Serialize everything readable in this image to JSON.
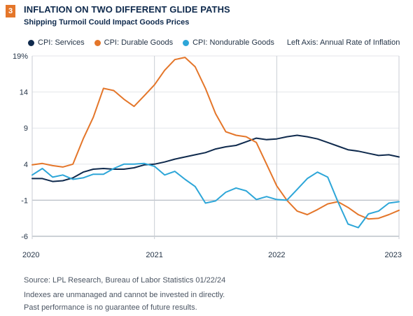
{
  "header": {
    "badge": "3",
    "title": "INFLATION ON TWO DIFFERENT GLIDE PATHS",
    "subtitle": "Shipping Turmoil Could Impact Goods Prices"
  },
  "legend": {
    "note": "Left Axis: Annual Rate of Inflation"
  },
  "footer": {
    "source": "Source: LPL Research, Bureau of Labor Statistics 01/22/24",
    "disclaimer1": "Indexes are unmanaged and cannot be invested in directly.",
    "disclaimer2": "Past performance is no guarantee of future results."
  },
  "chart_data": {
    "type": "line",
    "ylim": [
      -6,
      19
    ],
    "yticks": [
      19,
      14,
      9,
      4,
      -1,
      -6
    ],
    "ytick_labels": [
      "19%",
      "14",
      "9",
      "4",
      "-1",
      "-6"
    ],
    "xlim": [
      2020,
      2023
    ],
    "xticks": [
      2020,
      2021,
      2022,
      2023
    ],
    "xtick_labels": [
      "2020",
      "2021",
      "2022",
      "2023"
    ],
    "reference_line": -1,
    "grid": "horizontal",
    "legend_position": "top",
    "series": [
      {
        "name": "CPI: Services",
        "color": "#0f2a4d",
        "x": [
          2020.0,
          2020.083,
          2020.167,
          2020.25,
          2020.333,
          2020.417,
          2020.5,
          2020.583,
          2020.667,
          2020.75,
          2020.833,
          2020.917,
          2021.0,
          2021.083,
          2021.167,
          2021.25,
          2021.333,
          2021.417,
          2021.5,
          2021.583,
          2021.667,
          2021.75,
          2021.833,
          2021.917,
          2022.0,
          2022.083,
          2022.167,
          2022.25,
          2022.333,
          2022.417,
          2022.5,
          2022.583,
          2022.667,
          2022.75,
          2022.833,
          2022.917,
          2023.0
        ],
        "values": [
          2.0,
          2.0,
          1.6,
          1.7,
          2.1,
          2.9,
          3.3,
          3.4,
          3.3,
          3.3,
          3.5,
          3.9,
          4.0,
          4.3,
          4.7,
          5.0,
          5.3,
          5.6,
          6.1,
          6.4,
          6.6,
          7.1,
          7.6,
          7.4,
          7.5,
          7.8,
          8.0,
          7.8,
          7.5,
          7.0,
          6.5,
          6.0,
          5.8,
          5.5,
          5.2,
          5.3,
          5.0
        ]
      },
      {
        "name": "CPI: Durable Goods",
        "color": "#e4762a",
        "x": [
          2020.0,
          2020.083,
          2020.167,
          2020.25,
          2020.333,
          2020.417,
          2020.5,
          2020.583,
          2020.667,
          2020.75,
          2020.833,
          2020.917,
          2021.0,
          2021.083,
          2021.167,
          2021.25,
          2021.333,
          2021.417,
          2021.5,
          2021.583,
          2021.667,
          2021.75,
          2021.833,
          2021.917,
          2022.0,
          2022.083,
          2022.167,
          2022.25,
          2022.333,
          2022.417,
          2022.5,
          2022.583,
          2022.667,
          2022.75,
          2022.833,
          2022.917,
          2023.0
        ],
        "values": [
          3.9,
          4.1,
          3.8,
          3.6,
          4.0,
          7.5,
          10.5,
          14.5,
          14.2,
          13.0,
          12.0,
          13.5,
          15.0,
          17.0,
          18.5,
          18.8,
          17.5,
          14.5,
          11.0,
          8.5,
          8.0,
          7.8,
          7.0,
          4.0,
          1.0,
          -1.0,
          -2.5,
          -3.0,
          -2.3,
          -1.5,
          -1.2,
          -2.0,
          -3.0,
          -3.6,
          -3.5,
          -3.0,
          -2.4
        ]
      },
      {
        "name": "CPI: Nondurable Goods",
        "color": "#2da6d8",
        "x": [
          2020.0,
          2020.083,
          2020.167,
          2020.25,
          2020.333,
          2020.417,
          2020.5,
          2020.583,
          2020.667,
          2020.75,
          2020.833,
          2020.917,
          2021.0,
          2021.083,
          2021.167,
          2021.25,
          2021.333,
          2021.417,
          2021.5,
          2021.583,
          2021.667,
          2021.75,
          2021.833,
          2021.917,
          2022.0,
          2022.083,
          2022.167,
          2022.25,
          2022.333,
          2022.417,
          2022.5,
          2022.583,
          2022.667,
          2022.75,
          2022.833,
          2022.917,
          2023.0
        ],
        "values": [
          2.5,
          3.4,
          2.2,
          2.5,
          1.9,
          2.1,
          2.6,
          2.6,
          3.4,
          4.0,
          4.0,
          4.1,
          3.7,
          2.5,
          3.0,
          1.9,
          0.9,
          -1.4,
          -1.1,
          0.1,
          0.7,
          0.3,
          -0.9,
          -0.5,
          -0.9,
          -1.0,
          0.5,
          2.0,
          2.9,
          2.2,
          -1.2,
          -4.3,
          -4.8,
          -2.9,
          -2.5,
          -1.4,
          -1.2
        ]
      }
    ]
  }
}
